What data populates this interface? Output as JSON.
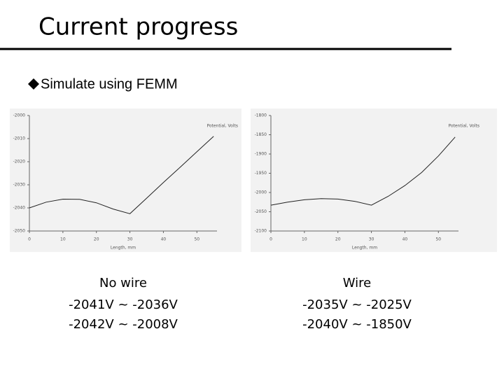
{
  "slide": {
    "title": "Current progress",
    "bullet": "Simulate using FEMM"
  },
  "captions": [
    {
      "heading": "No wire",
      "lines": [
        "-2041V ~ -2036V",
        "-2042V ~ -2008V"
      ]
    },
    {
      "heading": "Wire",
      "lines": [
        "-2035V ~ -2025V",
        "-2040V ~ -1850V"
      ]
    }
  ],
  "chart_data": [
    {
      "type": "line",
      "x_label": "Length, mm",
      "x": [
        0,
        5,
        10,
        15,
        20,
        25,
        30,
        35,
        40,
        45,
        50,
        55
      ],
      "series": [
        {
          "name": "Potential, Volts",
          "color": "#222222",
          "values": [
            -2040,
            -2037.5,
            -2036.2,
            -2036.3,
            -2037.8,
            -2040.5,
            -2042.5,
            -2035.8,
            -2029,
            -2022.4,
            -2015.7,
            -2009
          ]
        }
      ],
      "xlim": [
        0,
        56
      ],
      "xticks": [
        0,
        10,
        20,
        30,
        40,
        50
      ],
      "ylim": [
        -2050,
        -2000
      ],
      "yticks": [
        -2000,
        -2010,
        -2020,
        -2030,
        -2040,
        -2050
      ]
    },
    {
      "type": "line",
      "x_label": "Length, mm",
      "x": [
        0,
        5,
        10,
        15,
        20,
        25,
        30,
        35,
        40,
        45,
        50,
        55
      ],
      "series": [
        {
          "name": "Potential, Volts",
          "color": "#222222",
          "values": [
            -2033,
            -2025,
            -2019,
            -2016,
            -2017,
            -2023,
            -2033,
            -2010,
            -1982,
            -1948,
            -1905,
            -1856
          ]
        }
      ],
      "xlim": [
        0,
        56
      ],
      "xticks": [
        0,
        10,
        20,
        30,
        40,
        50
      ],
      "ylim": [
        -2100,
        -1800
      ],
      "yticks": [
        -1800,
        -1850,
        -1900,
        -1950,
        -2000,
        -2050,
        -2100
      ]
    }
  ]
}
